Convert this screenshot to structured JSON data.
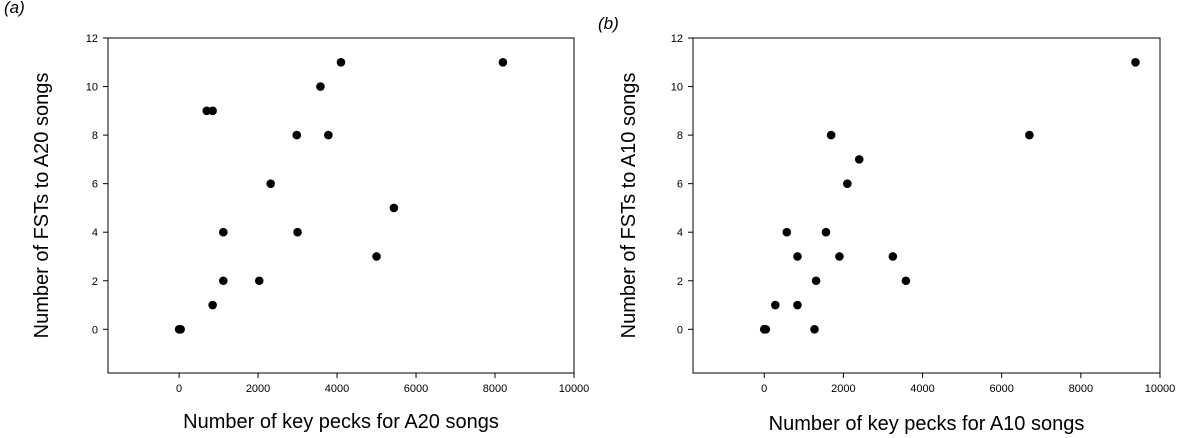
{
  "chart_data": [
    {
      "type": "scatter",
      "panel_label": "(a)",
      "title": "",
      "xlabel": "Number of key pecks for A20 songs",
      "ylabel": "Number of FSTs to A20 songs",
      "xlim": [
        -1800,
        10000
      ],
      "ylim": [
        -1.8,
        12
      ],
      "xticks": [
        0,
        2000,
        4000,
        6000,
        8000,
        10000
      ],
      "yticks": [
        0,
        2,
        4,
        6,
        8,
        10,
        12
      ],
      "grid": false,
      "marker_color": "#000000",
      "series": [
        {
          "x": [
            0,
            40,
            700,
            850,
            850,
            1120,
            1120,
            2030,
            2320,
            2980,
            3000,
            3580,
            3780,
            4100,
            5000,
            5440,
            8200
          ],
          "y": [
            0,
            0,
            9,
            9,
            1,
            4,
            2,
            2,
            6,
            8,
            4,
            10,
            8,
            11,
            3,
            5,
            11
          ]
        }
      ]
    },
    {
      "type": "scatter",
      "panel_label": "(b)",
      "title": "",
      "xlabel": "Number of key pecks for A10 songs",
      "ylabel": "Number of FSTs to A10 songs",
      "xlim": [
        -1800,
        10000
      ],
      "ylim": [
        -1.8,
        12
      ],
      "xticks": [
        0,
        2000,
        4000,
        6000,
        8000,
        10000
      ],
      "yticks": [
        0,
        2,
        4,
        6,
        8,
        10,
        12
      ],
      "grid": false,
      "marker_color": "#000000",
      "series": [
        {
          "x": [
            0,
            40,
            280,
            570,
            840,
            840,
            1270,
            1310,
            1560,
            1690,
            1900,
            2100,
            2400,
            3250,
            3580,
            6700,
            9380
          ],
          "y": [
            0,
            0,
            1,
            4,
            3,
            1,
            0,
            2,
            4,
            8,
            3,
            6,
            7,
            3,
            2,
            8,
            11
          ]
        }
      ]
    }
  ]
}
